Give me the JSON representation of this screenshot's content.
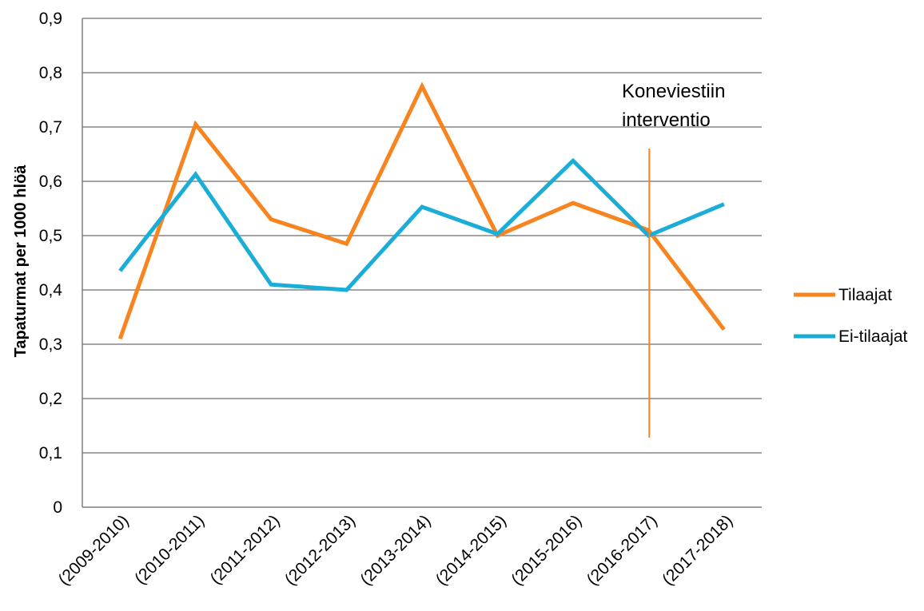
{
  "chart_data": {
    "type": "line",
    "categories": [
      "(2009-2010)",
      "(2010-2011)",
      "(2011-2012)",
      "(2012-2013)",
      "(2013-2014)",
      "(2014-2015)",
      "(2015-2016)",
      "(2016-2017)",
      "(2017-2018)"
    ],
    "series": [
      {
        "name": "Tilaajat",
        "color": "#F7841F",
        "values": [
          0.31,
          0.705,
          0.53,
          0.485,
          0.775,
          0.5,
          0.56,
          0.51,
          0.327
        ]
      },
      {
        "name": "Ei-tilaajat",
        "color": "#1AADD8",
        "values": [
          0.435,
          0.613,
          0.41,
          0.4,
          0.553,
          0.503,
          0.638,
          0.5,
          0.558
        ]
      }
    ],
    "ylabel": "Tapaturmat per 1000 hlöä",
    "xlabel": "",
    "ylim": [
      0,
      0.9
    ],
    "yticks": [
      "0",
      "0,1",
      "0,2",
      "0,3",
      "0,4",
      "0,5",
      "0,6",
      "0,7",
      "0,8",
      "0,9"
    ],
    "grid": "horizontal",
    "legend_position": "right",
    "annotation": {
      "lines": [
        "Koneviestiin",
        "interventio"
      ],
      "marker_category": "(2016-2017)",
      "marker_color": "#F7841F"
    }
  }
}
